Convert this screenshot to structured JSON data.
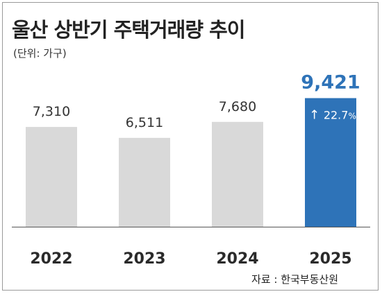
{
  "header": {
    "title": "울산 상반기 주택거래량 추이",
    "unit": "(단위: 가구)"
  },
  "footer": {
    "source": "자료 : 한국부동산원"
  },
  "colors": {
    "bar_default": "#d9d9d9",
    "bar_highlight": "#2e73b8",
    "value_highlight": "#2e73b8",
    "text": "#333333",
    "baseline": "#555555"
  },
  "chart_data": {
    "type": "bar",
    "title": "울산 상반기 주택거래량 추이",
    "categories": [
      "2022",
      "2023",
      "2024",
      "2025"
    ],
    "values": [
      7310,
      6511,
      7680,
      9421
    ],
    "value_labels": [
      "7,310",
      "6,511",
      "7,680",
      "9,421"
    ],
    "highlight_index": 3,
    "highlight_annotation": {
      "arrow": "↑",
      "text": "22.7",
      "suffix": "%"
    },
    "ylim": [
      0,
      10000
    ],
    "grid": false,
    "legend": "none"
  }
}
